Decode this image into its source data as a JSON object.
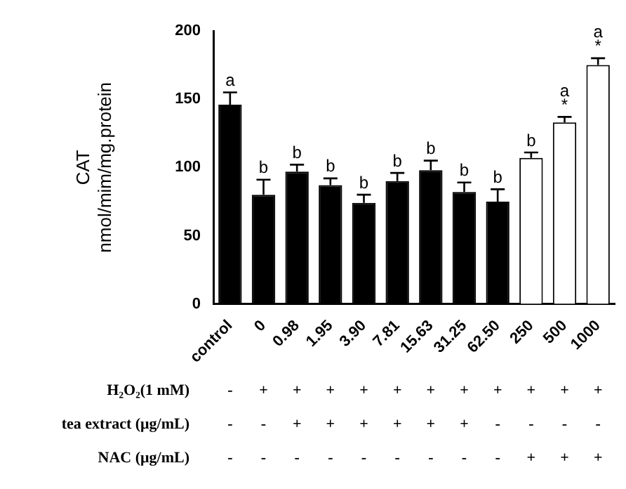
{
  "chart_data": {
    "type": "bar",
    "ylabel": "CAT\nnmol/mim/mg.protein",
    "categories": [
      "control",
      "0",
      "0.98",
      "1.95",
      "3.90",
      "7.81",
      "15.63",
      "31.25",
      "62.50",
      "250",
      "500",
      "1000"
    ],
    "values": [
      146,
      80,
      97,
      87,
      74,
      90,
      98,
      82,
      75,
      107,
      133,
      175
    ],
    "errors": [
      9,
      11,
      5,
      5,
      6,
      6,
      7,
      7,
      9,
      4,
      4,
      5
    ],
    "colors": [
      "#000000",
      "#000000",
      "#000000",
      "#000000",
      "#000000",
      "#000000",
      "#000000",
      "#000000",
      "#000000",
      "#ffffff",
      "#ffffff",
      "#ffffff"
    ],
    "ylim": [
      0,
      200
    ],
    "yticks": [
      0,
      50,
      100,
      150,
      200
    ],
    "grid": false,
    "legend": false,
    "annotations": [
      {
        "text": "a",
        "x": "control",
        "y": 155
      },
      {
        "text": "b",
        "x": "0",
        "y": 91
      },
      {
        "text": "b",
        "x": "0.98",
        "y": 102
      },
      {
        "text": "b",
        "x": "1.95",
        "y": 92
      },
      {
        "text": "b",
        "x": "3.90",
        "y": 80
      },
      {
        "text": "b",
        "x": "7.81",
        "y": 96
      },
      {
        "text": "b",
        "x": "15.63",
        "y": 105
      },
      {
        "text": "b",
        "x": "31.25",
        "y": 89
      },
      {
        "text": "b",
        "x": "62.50",
        "y": 84
      },
      {
        "text": "b",
        "x": "250",
        "y": 111
      },
      {
        "text": "*",
        "x": "500",
        "y": 137
      },
      {
        "text": "a",
        "x": "500",
        "y": 137
      },
      {
        "text": "*",
        "x": "1000",
        "y": 180
      },
      {
        "text": "a",
        "x": "1000",
        "y": 180
      },
      "H₂O₂(1 mM)",
      "-",
      "+",
      "+",
      "+",
      "+",
      "+",
      "+",
      "+",
      "+",
      "+",
      "+",
      "+",
      "tea extract (μg/mL)",
      "-",
      "-",
      "+",
      "+",
      "+",
      "+",
      "+",
      "+",
      "-",
      "-",
      "-",
      "-",
      "NAC (μg/mL)",
      "-",
      "-",
      "-",
      "-",
      "-",
      "-",
      "-",
      "-",
      "-",
      "+",
      "+",
      "+"
    ]
  }
}
